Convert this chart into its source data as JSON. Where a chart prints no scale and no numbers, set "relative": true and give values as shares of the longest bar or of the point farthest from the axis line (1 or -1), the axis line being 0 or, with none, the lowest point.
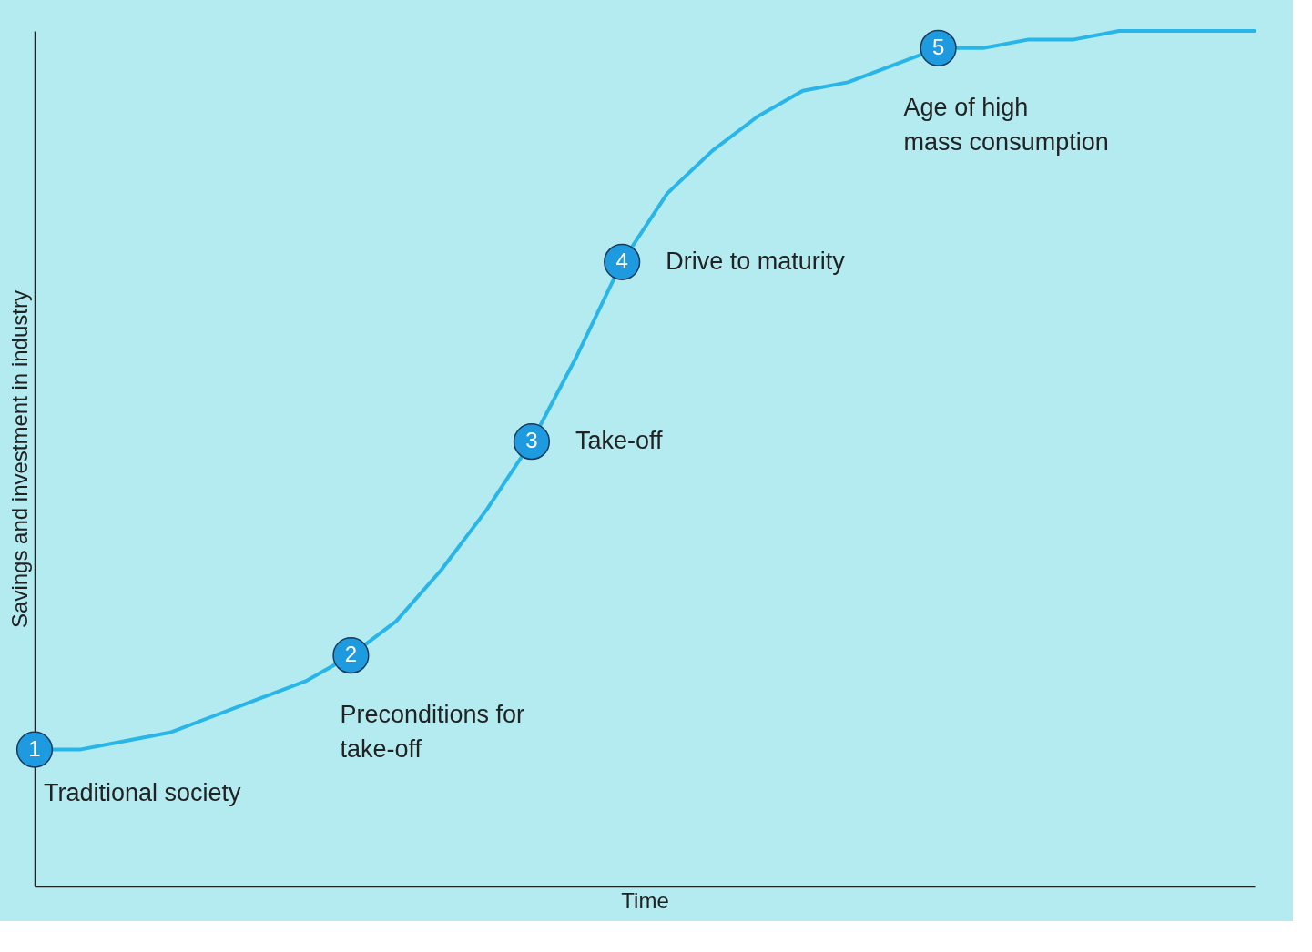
{
  "chart_data": {
    "type": "line",
    "relative": true,
    "xlabel": "Time",
    "ylabel": "Savings and investment in industry",
    "tick_labels": false,
    "categories": [
      null,
      null,
      null,
      null,
      null,
      null,
      null,
      null,
      null,
      null,
      null,
      null,
      null,
      null,
      null,
      null,
      null,
      null,
      null,
      null,
      null,
      null,
      null,
      null,
      null,
      null,
      null,
      null
    ],
    "series": [
      {
        "color": "#29b5e8",
        "values": [
          0.16,
          0.16,
          0.17,
          0.18,
          0.2,
          0.22,
          0.24,
          0.27,
          0.31,
          0.37,
          0.44,
          0.52,
          0.62,
          0.73,
          0.81,
          0.86,
          0.9,
          0.93,
          0.94,
          0.96,
          0.98,
          0.98,
          0.99,
          0.99,
          1.0,
          1.0,
          1.0,
          1.0
        ]
      }
    ],
    "annotations": [
      {
        "text": "1",
        "y": 0.16
      },
      "Traditional society",
      {
        "text": "2",
        "y": 0.27
      },
      "Preconditions for\ntake-off",
      {
        "text": "3",
        "y": 0.52
      },
      "Take-off",
      {
        "text": "4",
        "y": 0.73
      },
      "Drive to maturity",
      {
        "text": "5",
        "y": 0.98
      },
      "Age of high\nmass consumption"
    ]
  }
}
